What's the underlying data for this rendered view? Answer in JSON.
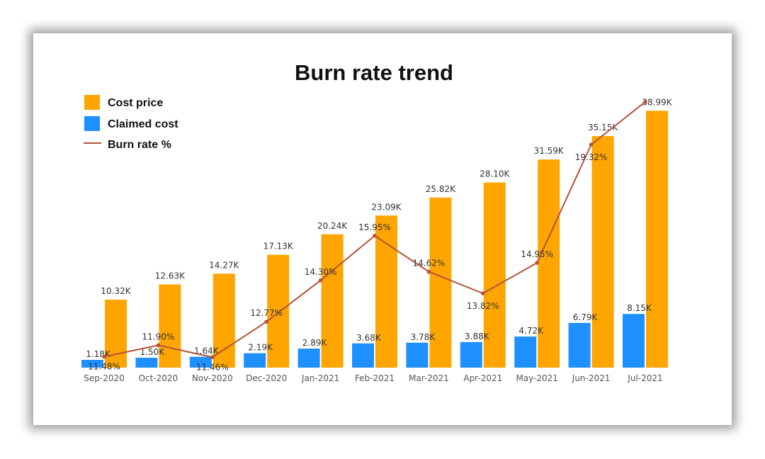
{
  "chart_data": {
    "type": "bar",
    "title": "Burn rate trend",
    "categories": [
      "Sep-2020",
      "Oct-2020",
      "Nov-2020",
      "Dec-2020",
      "Jan-2021",
      "Feb-2021",
      "Mar-2021",
      "Apr-2021",
      "May-2021",
      "Jun-2021",
      "Jul-2021"
    ],
    "series": [
      {
        "name": "Claimed cost",
        "kind": "bar",
        "color": "#1E90FF",
        "values": [
          1.18,
          1.5,
          1.64,
          2.19,
          2.89,
          3.68,
          3.78,
          3.88,
          4.72,
          6.79,
          8.15
        ],
        "labels": [
          "1.18K",
          "1.50K",
          "1.64K",
          "2.19K",
          "2.89K",
          "3.68K",
          "3.78K",
          "3.88K",
          "4.72K",
          "6.79K",
          "8.15K"
        ]
      },
      {
        "name": "Cost price",
        "kind": "bar",
        "color": "#FFA500",
        "values": [
          10.32,
          12.63,
          14.27,
          17.13,
          20.24,
          23.09,
          25.82,
          28.1,
          31.59,
          35.15,
          38.99
        ],
        "labels": [
          "10.32K",
          "12.63K",
          "14.27K",
          "17.13K",
          "20.24K",
          "23.09K",
          "25.82K",
          "28.10K",
          "31.59K",
          "35.15K",
          "38.99K"
        ]
      },
      {
        "name": "Burn rate %",
        "kind": "line",
        "color": "#B5533C",
        "values": [
          11.48,
          11.9,
          11.46,
          12.77,
          14.3,
          15.95,
          14.62,
          13.82,
          14.95,
          19.32,
          20.9
        ],
        "labels": [
          "11.48%",
          "11.90%",
          "11.46%",
          "12.77%",
          "14.30%",
          "15.95%",
          "14.62%",
          "13.82%",
          "14.95%",
          "19.32%",
          ""
        ]
      }
    ],
    "legend": {
      "position": "top-left",
      "entries": [
        "Cost price",
        "Claimed cost",
        "Burn rate %"
      ]
    },
    "xlabel": "",
    "ylabel": "",
    "ylim": [
      0,
      40
    ],
    "y2lim": [
      10,
      21
    ],
    "grid": false
  }
}
